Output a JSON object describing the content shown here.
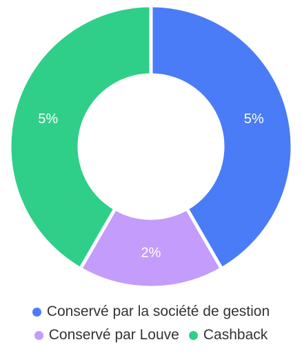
{
  "chart_data": {
    "type": "pie",
    "variant": "donut",
    "categories": [
      "Conservé par la société de gestion",
      "Conservé par Louve",
      "Cashback"
    ],
    "values": [
      5,
      2,
      5
    ],
    "data_labels": [
      "5%",
      "2%",
      "5%"
    ],
    "colors": [
      "#4a7cf7",
      "#c49cfb",
      "#2fcf8a"
    ],
    "title": "",
    "legend_position": "bottom"
  }
}
